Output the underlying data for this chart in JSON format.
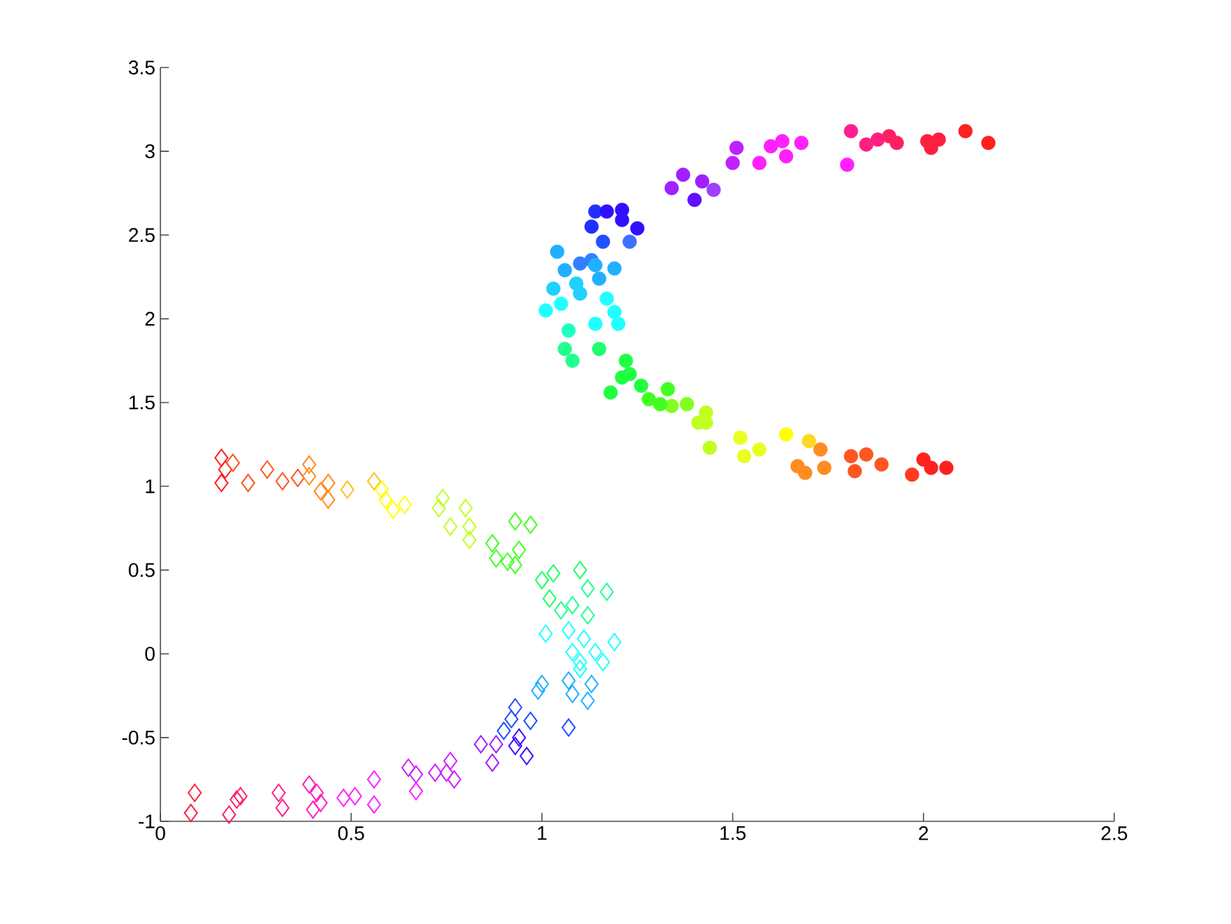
{
  "chart_data": {
    "type": "scatter",
    "xlim": [
      0,
      2.5
    ],
    "ylim": [
      -1,
      3.5
    ],
    "xticks": [
      0,
      0.5,
      1,
      1.5,
      2,
      2.5
    ],
    "yticks": [
      -1,
      -0.5,
      0,
      0.5,
      1,
      1.5,
      2,
      2.5,
      3,
      3.5
    ],
    "grid": false,
    "series": [
      {
        "marker": "diamond",
        "x": [
          0.16,
          0.17,
          0.16,
          0.19,
          0.23,
          0.28,
          0.32,
          0.36,
          0.39,
          0.39,
          0.42,
          0.44,
          0.44,
          0.49,
          0.56,
          0.58,
          0.59,
          0.61,
          0.64,
          0.74,
          0.73,
          0.8,
          0.76,
          0.81,
          0.81,
          0.87,
          0.88,
          0.93,
          0.97,
          0.94,
          0.93,
          0.91,
          1.0,
          1.03,
          1.02,
          1.1,
          1.12,
          1.17,
          1.05,
          1.08,
          1.12,
          1.07,
          1.01,
          1.11,
          1.19,
          1.08,
          1.14,
          1.16,
          1.1,
          1.1,
          1.0,
          0.99,
          1.07,
          1.13,
          1.08,
          1.12,
          1.07,
          0.93,
          0.92,
          0.97,
          0.9,
          0.94,
          0.93,
          0.96,
          0.88,
          0.84,
          0.87,
          0.76,
          0.77,
          0.75,
          0.72,
          0.67,
          0.65,
          0.67,
          0.56,
          0.56,
          0.51,
          0.48,
          0.41,
          0.42,
          0.39,
          0.4,
          0.31,
          0.32,
          0.21,
          0.2,
          0.18,
          0.09,
          0.08
        ],
        "values": [
          1.17,
          1.1,
          1.02,
          1.14,
          1.02,
          1.1,
          1.03,
          1.05,
          1.13,
          1.06,
          0.97,
          1.02,
          0.92,
          0.98,
          1.03,
          0.98,
          0.92,
          0.86,
          0.89,
          0.93,
          0.87,
          0.87,
          0.76,
          0.76,
          0.68,
          0.66,
          0.57,
          0.79,
          0.77,
          0.62,
          0.53,
          0.55,
          0.44,
          0.48,
          0.33,
          0.5,
          0.39,
          0.37,
          0.26,
          0.29,
          0.23,
          0.14,
          0.12,
          0.09,
          0.07,
          0.01,
          0.01,
          -0.05,
          -0.05,
          -0.09,
          -0.18,
          -0.22,
          -0.16,
          -0.18,
          -0.24,
          -0.28,
          -0.44,
          -0.32,
          -0.39,
          -0.4,
          -0.46,
          -0.5,
          -0.55,
          -0.61,
          -0.54,
          -0.54,
          -0.65,
          -0.64,
          -0.75,
          -0.71,
          -0.71,
          -0.72,
          -0.68,
          -0.82,
          -0.75,
          -0.9,
          -0.85,
          -0.86,
          -0.83,
          -0.89,
          -0.78,
          -0.93,
          -0.83,
          -0.92,
          -0.85,
          -0.87,
          -0.96,
          -0.83,
          -0.95
        ],
        "colors": [
          "#ff2020",
          "#ff2020",
          "#ff2020",
          "#ff5520",
          "#ff5520",
          "#ff5520",
          "#ff5520",
          "#ff5520",
          "#ff8c20",
          "#ff8c20",
          "#ff8c20",
          "#ff8c20",
          "#ff8c20",
          "#ffbf20",
          "#ffbf20",
          "#ffff00",
          "#ffff00",
          "#ffff00",
          "#ffff00",
          "#c0ff20",
          "#c0ff20",
          "#c0ff20",
          "#c0ff20",
          "#c0ff20",
          "#c0ff20",
          "#40ff20",
          "#40ff20",
          "#40ff20",
          "#40ff20",
          "#40ff20",
          "#40ff20",
          "#40ff20",
          "#20ff60",
          "#20ff60",
          "#20ff60",
          "#20ff60",
          "#20ff90",
          "#20ff90",
          "#20ff90",
          "#20ff90",
          "#20ff90",
          "#20ffff",
          "#20ffff",
          "#20ffff",
          "#20ffff",
          "#20ffff",
          "#20ffff",
          "#20ffff",
          "#20ffff",
          "#20ffff",
          "#20b0ff",
          "#20b0ff",
          "#20b0ff",
          "#20b0ff",
          "#20b0ff",
          "#20b0ff",
          "#2050ff",
          "#2050ff",
          "#2050ff",
          "#2050ff",
          "#2050ff",
          "#4010ff",
          "#4010ff",
          "#4010ff",
          "#a020ff",
          "#a020ff",
          "#a020ff",
          "#d020ff",
          "#d020ff",
          "#d020ff",
          "#d020ff",
          "#d020ff",
          "#d020ff",
          "#ff20ff",
          "#ff20ff",
          "#ff20ff",
          "#ff20ff",
          "#ff20ff",
          "#ff20c0",
          "#ff20c0",
          "#ff20c0",
          "#ff20c0",
          "#ff2090",
          "#ff2090",
          "#ff2070",
          "#ff2070",
          "#ff2070",
          "#ff2040",
          "#ff2040"
        ]
      },
      {
        "marker": "circle",
        "x": [
          2.06,
          2.0,
          2.02,
          1.97,
          1.89,
          1.85,
          1.82,
          1.81,
          1.74,
          1.73,
          1.69,
          1.67,
          1.7,
          1.64,
          1.57,
          1.53,
          1.52,
          1.44,
          1.43,
          1.41,
          1.43,
          1.38,
          1.34,
          1.33,
          1.31,
          1.28,
          1.26,
          1.22,
          1.23,
          1.21,
          1.18,
          1.15,
          1.08,
          1.06,
          1.07,
          1.14,
          1.2,
          1.19,
          1.17,
          1.01,
          1.05,
          1.03,
          1.1,
          1.09,
          1.15,
          1.06,
          1.04,
          1.1,
          1.13,
          1.14,
          1.19,
          1.16,
          1.23,
          1.13,
          1.14,
          1.17,
          1.21,
          1.21,
          1.25,
          1.34,
          1.37,
          1.4,
          1.42,
          1.45,
          1.5,
          1.51,
          1.57,
          1.6,
          1.63,
          1.64,
          1.68,
          1.8,
          1.81,
          1.85,
          1.88,
          1.91,
          1.93,
          2.01,
          2.04,
          2.02,
          2.11,
          2.17
        ],
        "values": [
          1.11,
          1.16,
          1.11,
          1.07,
          1.13,
          1.19,
          1.09,
          1.18,
          1.11,
          1.22,
          1.08,
          1.12,
          1.27,
          1.31,
          1.22,
          1.18,
          1.29,
          1.23,
          1.44,
          1.38,
          1.38,
          1.49,
          1.48,
          1.58,
          1.49,
          1.52,
          1.6,
          1.75,
          1.67,
          1.65,
          1.56,
          1.82,
          1.75,
          1.82,
          1.93,
          1.97,
          1.97,
          2.04,
          2.12,
          2.05,
          2.09,
          2.18,
          2.15,
          2.21,
          2.24,
          2.29,
          2.4,
          2.33,
          2.35,
          2.32,
          2.3,
          2.46,
          2.46,
          2.55,
          2.64,
          2.64,
          2.65,
          2.59,
          2.54,
          2.78,
          2.86,
          2.71,
          2.82,
          2.77,
          2.93,
          3.02,
          2.93,
          3.03,
          3.06,
          2.97,
          3.05,
          2.92,
          3.12,
          3.04,
          3.07,
          3.09,
          3.05,
          3.06,
          3.07,
          3.02,
          3.12,
          3.05
        ],
        "colors": [
          "#ff2020",
          "#ff2020",
          "#ff2020",
          "#ff3a20",
          "#ff5520",
          "#ff5520",
          "#ff5520",
          "#ff5520",
          "#ff8c20",
          "#ff8c20",
          "#ff8c20",
          "#ff8c20",
          "#ffd820",
          "#ffff00",
          "#e8ff20",
          "#e8ff20",
          "#e8ff20",
          "#c0ff20",
          "#c0ff20",
          "#c0ff20",
          "#c0ff20",
          "#80ff20",
          "#80ff20",
          "#40ff20",
          "#40ff20",
          "#40ff20",
          "#20ff40",
          "#20ff40",
          "#20ff40",
          "#20ff40",
          "#20ff40",
          "#20ff70",
          "#20ff90",
          "#20ff90",
          "#20ffc0",
          "#20ffff",
          "#20ffff",
          "#20ffff",
          "#20ffff",
          "#20ffff",
          "#20ffff",
          "#20d0ff",
          "#20d0ff",
          "#20d0ff",
          "#20b0ff",
          "#20b0ff",
          "#20b0ff",
          "#3080ff",
          "#3080ff",
          "#20b0ff",
          "#20b0ff",
          "#2050ff",
          "#4070ff",
          "#2030ff",
          "#2030ff",
          "#3010ff",
          "#3010ff",
          "#3010ff",
          "#3010ff",
          "#a020ff",
          "#a020ff",
          "#6010ff",
          "#a020ff",
          "#a040ff",
          "#c020ff",
          "#c020ff",
          "#ff20ff",
          "#ff20ff",
          "#ff20ff",
          "#ff20ff",
          "#ff20ff",
          "#ff20ff",
          "#ff2090",
          "#ff2080",
          "#ff2080",
          "#ff2060",
          "#ff2060",
          "#ff2040",
          "#ff2040",
          "#ff2040",
          "#ff2020",
          "#ff2020"
        ]
      }
    ]
  }
}
